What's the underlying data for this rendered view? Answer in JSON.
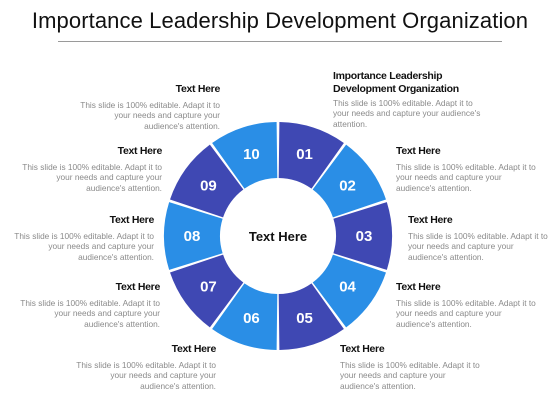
{
  "title": "Importance Leadership Development Organization",
  "center_text": "Text Here",
  "colors": {
    "dark": "#3f48b3",
    "light": "#2a8ee6"
  },
  "segments": [
    {
      "number": "01",
      "color": "dark"
    },
    {
      "number": "02",
      "color": "light"
    },
    {
      "number": "03",
      "color": "dark"
    },
    {
      "number": "04",
      "color": "light"
    },
    {
      "number": "05",
      "color": "dark"
    },
    {
      "number": "06",
      "color": "light"
    },
    {
      "number": "07",
      "color": "dark"
    },
    {
      "number": "08",
      "color": "light"
    },
    {
      "number": "09",
      "color": "dark"
    },
    {
      "number": "10",
      "color": "light"
    }
  ],
  "blocks": {
    "top_right": {
      "heading": "Importance Leadership Development Organization",
      "body": "This slide is 100% editable. Adapt it to your needs and capture your audience's attention."
    },
    "right_1": {
      "heading": "Text Here",
      "body": "This slide is 100% editable. Adapt it to your needs and capture your audience's attention."
    },
    "right_2": {
      "heading": "Text Here",
      "body": "This slide is 100% editable. Adapt it to your needs and capture your audience's attention."
    },
    "right_3": {
      "heading": "Text Here",
      "body": "This slide is 100% editable. Adapt it to your needs and capture your audience's attention."
    },
    "right_4": {
      "heading": "Text Here",
      "body": "This slide is 100% editable. Adapt it to your needs and capture your audience's attention."
    },
    "top_left": {
      "heading": "Text Here",
      "body": "This slide is 100% editable. Adapt it to your needs and capture your audience's attention."
    },
    "left_1": {
      "heading": "Text Here",
      "body": "This slide is 100% editable. Adapt it to your needs and capture your audience's attention."
    },
    "left_2": {
      "heading": "Text Here",
      "body": "This slide is 100% editable. Adapt it to your needs and capture your audience's attention."
    },
    "left_3": {
      "heading": "Text Here",
      "body": "This slide is 100% editable. Adapt it to your needs and capture your audience's attention."
    },
    "left_4": {
      "heading": "Text Here",
      "body": "This slide is 100% editable. Adapt it to your needs and capture your audience's attention."
    }
  }
}
